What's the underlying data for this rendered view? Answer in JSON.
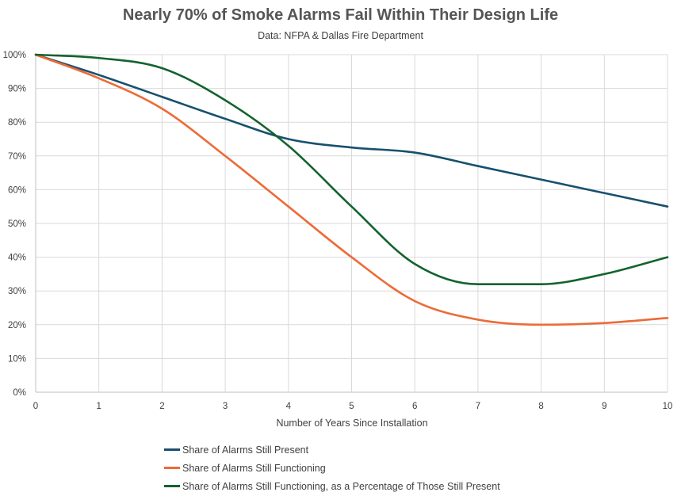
{
  "chart_data": {
    "type": "line",
    "title": "Nearly 70% of Smoke Alarms Fail Within Their Design Life",
    "subtitle": "Data: NFPA & Dallas Fire Department",
    "xlabel": "Number of Years Since Installation",
    "ylabel": "",
    "xlim": [
      0,
      10
    ],
    "ylim": [
      0,
      100
    ],
    "x_ticks": [
      "0",
      "1",
      "2",
      "3",
      "4",
      "5",
      "6",
      "7",
      "8",
      "9",
      "10"
    ],
    "y_ticks": [
      "0%",
      "10%",
      "20%",
      "30%",
      "40%",
      "50%",
      "60%",
      "70%",
      "80%",
      "90%",
      "100%"
    ],
    "grid": true,
    "legend_position": "bottom",
    "x": [
      0,
      1,
      2,
      3,
      4,
      5,
      6,
      7,
      8,
      9,
      10
    ],
    "series": [
      {
        "name": "Share of Alarms Still Present",
        "color": "#17506e",
        "values": [
          100,
          94,
          87.5,
          81,
          75,
          72.5,
          71,
          67,
          63,
          59,
          55
        ]
      },
      {
        "name": "Share of Alarms Still Functioning",
        "color": "#ec6b37",
        "values": [
          100,
          93,
          84,
          70,
          55,
          40,
          27,
          21.5,
          20,
          20.5,
          22
        ]
      },
      {
        "name": "Share of Alarms Still Functioning, as a Percentage of Those Still Present",
        "color": "#13632e",
        "values": [
          100,
          99,
          96,
          86.5,
          73,
          55,
          38,
          32,
          32,
          35,
          40
        ]
      }
    ]
  }
}
